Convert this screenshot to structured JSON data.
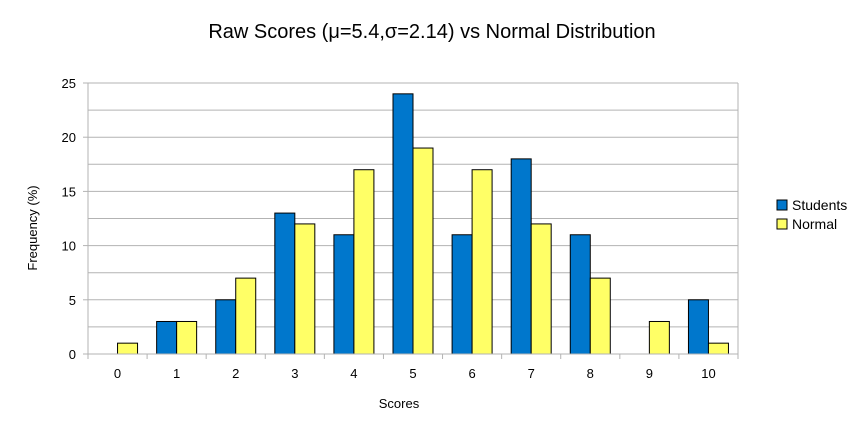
{
  "chart_data": {
    "type": "bar",
    "title": "Raw Scores (μ=5.4,σ=2.14) vs Normal Distribution",
    "xlabel": "Scores",
    "ylabel": "Frequency (%)",
    "categories": [
      "0",
      "1",
      "2",
      "3",
      "4",
      "5",
      "6",
      "7",
      "8",
      "9",
      "10"
    ],
    "series": [
      {
        "name": "Students",
        "color": "#0077cc",
        "values": [
          0,
          3,
          5,
          13,
          11,
          24,
          11,
          18,
          11,
          0,
          5
        ]
      },
      {
        "name": "Normal",
        "color": "#ffff66",
        "values": [
          1,
          3,
          7,
          12,
          17,
          19,
          17,
          12,
          7,
          3,
          1
        ]
      }
    ],
    "ylim": [
      0,
      25
    ],
    "yticks": [
      "0",
      "5",
      "10",
      "15",
      "20",
      "25"
    ],
    "grid": true,
    "legend": "right"
  }
}
